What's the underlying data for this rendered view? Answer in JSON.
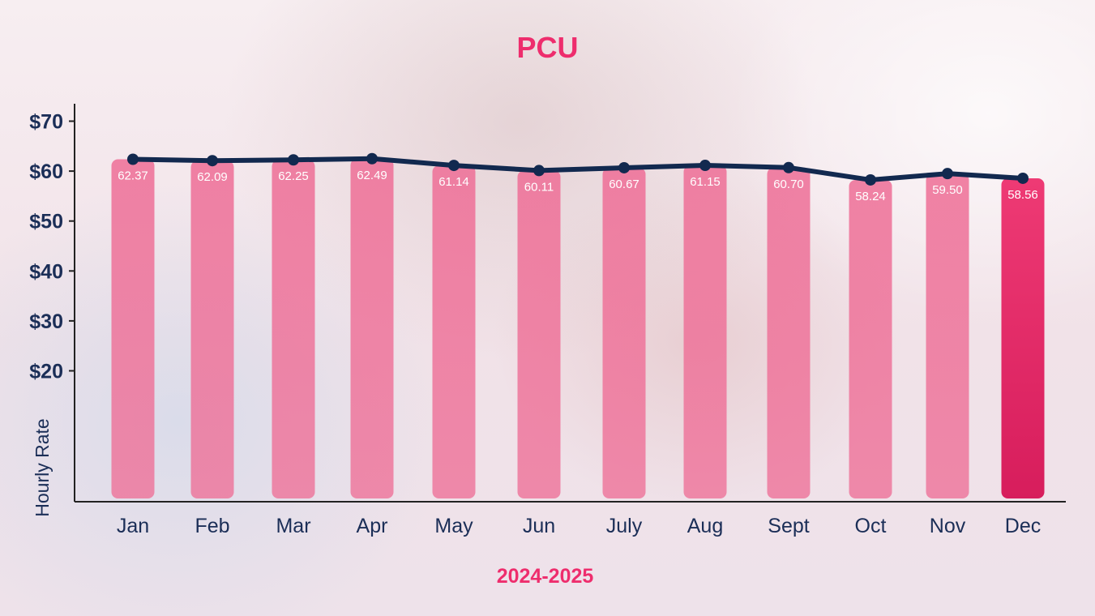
{
  "chart_data": {
    "type": "bar",
    "title": "PCU",
    "xlabel": "2024-2025",
    "ylabel": "Hourly Rate",
    "categories": [
      "Jan",
      "Feb",
      "Mar",
      "Apr",
      "May",
      "Jun",
      "July",
      "Aug",
      "Sept",
      "Oct",
      "Nov",
      "Dec"
    ],
    "series": [
      {
        "values": [
          62.37,
          62.09,
          62.25,
          62.49,
          61.14,
          60.11,
          60.67,
          61.15,
          60.7,
          58.24,
          59.5,
          58.56
        ],
        "labels": [
          "62.37",
          "62.09",
          "62.25",
          "62.49",
          "61.14",
          "60.11",
          "60.67",
          "61.15",
          "60.70",
          "58.24",
          "59.50",
          "58.56"
        ],
        "render": [
          "bar",
          "line"
        ]
      }
    ],
    "y_ticks": [
      {
        "value": 20,
        "label": "$20"
      },
      {
        "value": 30,
        "label": "$30"
      },
      {
        "value": 40,
        "label": "$40"
      },
      {
        "value": 50,
        "label": "$50"
      },
      {
        "value": 60,
        "label": "$60"
      },
      {
        "value": 70,
        "label": "$70"
      }
    ],
    "grid": false,
    "legend": "none",
    "highlight_category": "Dec",
    "colors": {
      "title": "#ee2d6d",
      "bar": "#ef6f98",
      "bar_highlight": "#e72a68",
      "line": "#12294f",
      "axis_text": "#1b2e57"
    }
  }
}
